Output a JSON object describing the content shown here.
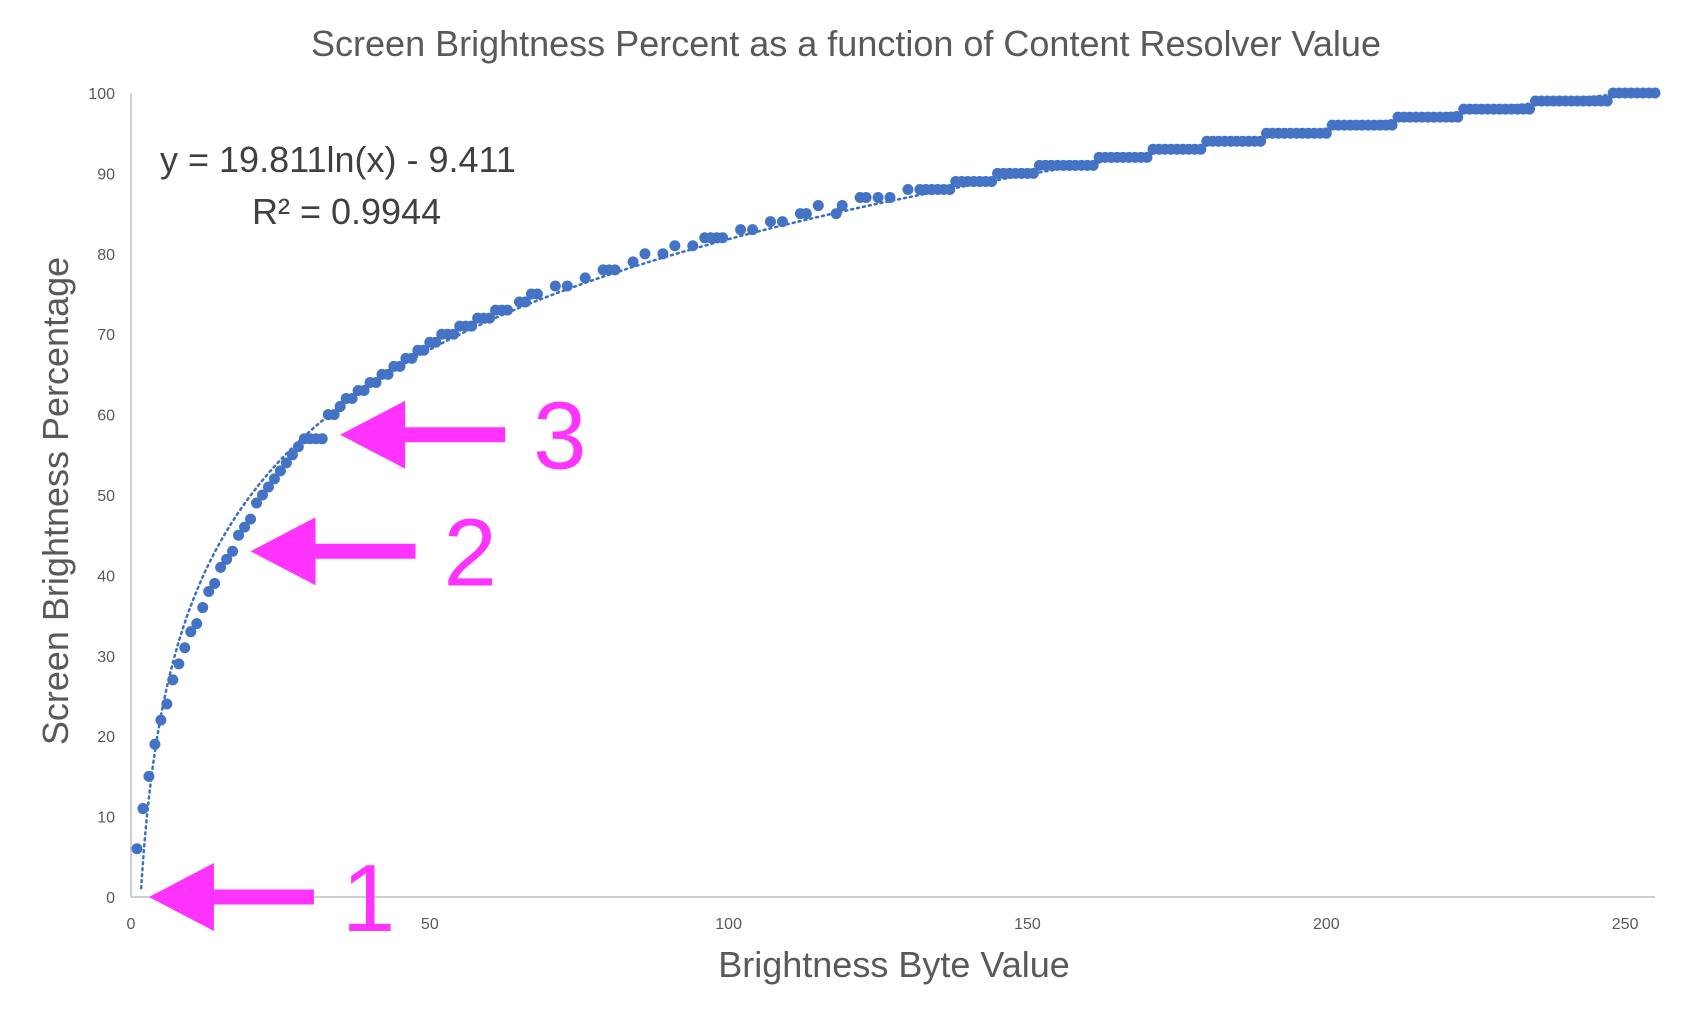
{
  "chart_data": {
    "type": "scatter",
    "title": "Screen Brightness Percent as a function of Content Resolver Value",
    "xlabel": "Brightness Byte Value",
    "ylabel": "Screen Brightness Percentage",
    "xlim": [
      0,
      255
    ],
    "ylim": [
      0,
      100
    ],
    "x_ticks": [
      0,
      50,
      100,
      150,
      200,
      250
    ],
    "y_ticks": [
      0,
      10,
      20,
      30,
      40,
      50,
      60,
      70,
      80,
      90,
      100
    ],
    "grid": false,
    "legend": "none",
    "marker_color": "#4472c4",
    "trendline": {
      "type": "logarithmic",
      "equation": "y = 19.811ln(x) - 9.411",
      "r_squared": "R² = 0.9944",
      "a": 19.811,
      "b": -9.411,
      "style": "dotted",
      "color": "#3a6fc4"
    },
    "series": [
      {
        "points": [
          [
            1,
            6
          ],
          [
            2,
            11
          ],
          [
            3,
            15
          ],
          [
            4,
            19
          ],
          [
            5,
            22
          ],
          [
            6,
            24
          ],
          [
            7,
            27
          ],
          [
            8,
            29
          ],
          [
            9,
            31
          ],
          [
            10,
            33
          ],
          [
            11,
            34
          ],
          [
            12,
            36
          ],
          [
            13,
            38
          ],
          [
            14,
            39
          ],
          [
            15,
            41
          ],
          [
            16,
            42
          ],
          [
            17,
            43
          ],
          [
            18,
            45
          ],
          [
            19,
            46
          ],
          [
            20,
            47
          ],
          [
            21,
            49
          ],
          [
            22,
            50
          ],
          [
            23,
            51
          ],
          [
            24,
            52
          ],
          [
            25,
            53
          ],
          [
            26,
            54
          ],
          [
            27,
            55
          ],
          [
            28,
            56
          ],
          [
            29,
            57
          ],
          [
            30,
            57
          ],
          [
            31,
            57
          ],
          [
            32,
            57
          ],
          [
            33,
            60
          ],
          [
            34,
            60
          ],
          [
            35,
            61
          ],
          [
            36,
            62
          ],
          [
            37,
            62
          ],
          [
            38,
            63
          ],
          [
            39,
            63
          ],
          [
            40,
            64
          ],
          [
            41,
            64
          ],
          [
            42,
            65
          ],
          [
            43,
            65
          ],
          [
            44,
            66
          ],
          [
            45,
            66
          ],
          [
            46,
            67
          ],
          [
            47,
            67
          ],
          [
            48,
            68
          ],
          [
            49,
            68
          ],
          [
            50,
            69
          ],
          [
            51,
            69
          ],
          [
            52,
            70
          ],
          [
            53,
            70
          ],
          [
            54,
            70
          ],
          [
            55,
            71
          ],
          [
            56,
            71
          ],
          [
            57,
            71
          ],
          [
            58,
            72
          ],
          [
            59,
            72
          ],
          [
            60,
            72
          ],
          [
            61,
            73
          ],
          [
            62,
            73
          ],
          [
            63,
            73
          ],
          [
            65,
            74
          ],
          [
            66,
            74
          ],
          [
            67,
            75
          ],
          [
            68,
            75
          ],
          [
            71,
            76
          ],
          [
            73,
            76
          ],
          [
            76,
            77
          ],
          [
            79,
            78
          ],
          [
            80,
            78
          ],
          [
            81,
            78
          ],
          [
            84,
            79
          ],
          [
            86,
            80
          ],
          [
            89,
            80
          ],
          [
            91,
            81
          ],
          [
            94,
            81
          ],
          [
            96,
            82
          ],
          [
            97,
            82
          ],
          [
            98,
            82
          ],
          [
            99,
            82
          ],
          [
            102,
            83
          ],
          [
            104,
            83
          ],
          [
            107,
            84
          ],
          [
            109,
            84
          ],
          [
            112,
            85
          ],
          [
            113,
            85
          ],
          [
            115,
            86
          ],
          [
            118,
            85
          ],
          [
            119,
            86
          ],
          [
            122,
            87
          ],
          [
            123,
            87
          ],
          [
            125,
            87
          ],
          [
            127,
            87
          ],
          [
            130,
            88
          ],
          [
            132,
            88
          ],
          [
            133,
            88
          ],
          [
            134,
            88
          ],
          [
            135,
            88
          ],
          [
            136,
            88
          ],
          [
            137,
            88
          ],
          [
            138,
            89
          ],
          [
            139,
            89
          ],
          [
            140,
            89
          ],
          [
            141,
            89
          ],
          [
            142,
            89
          ],
          [
            143,
            89
          ],
          [
            144,
            89
          ],
          [
            145,
            90
          ],
          [
            146,
            90
          ],
          [
            147,
            90
          ],
          [
            148,
            90
          ],
          [
            149,
            90
          ],
          [
            150,
            90
          ],
          [
            151,
            90
          ],
          [
            152,
            91
          ],
          [
            153,
            91
          ],
          [
            154,
            91
          ],
          [
            155,
            91
          ],
          [
            156,
            91
          ],
          [
            157,
            91
          ],
          [
            158,
            91
          ],
          [
            159,
            91
          ],
          [
            160,
            91
          ],
          [
            161,
            91
          ],
          [
            162,
            92
          ],
          [
            163,
            92
          ],
          [
            164,
            92
          ],
          [
            165,
            92
          ],
          [
            166,
            92
          ],
          [
            167,
            92
          ],
          [
            168,
            92
          ],
          [
            169,
            92
          ],
          [
            170,
            92
          ],
          [
            171,
            93
          ],
          [
            172,
            93
          ],
          [
            173,
            93
          ],
          [
            174,
            93
          ],
          [
            175,
            93
          ],
          [
            176,
            93
          ],
          [
            177,
            93
          ],
          [
            178,
            93
          ],
          [
            179,
            93
          ],
          [
            180,
            94
          ],
          [
            181,
            94
          ],
          [
            182,
            94
          ],
          [
            183,
            94
          ],
          [
            184,
            94
          ],
          [
            185,
            94
          ],
          [
            186,
            94
          ],
          [
            187,
            94
          ],
          [
            188,
            94
          ],
          [
            189,
            94
          ],
          [
            190,
            95
          ],
          [
            191,
            95
          ],
          [
            192,
            95
          ],
          [
            193,
            95
          ],
          [
            194,
            95
          ],
          [
            195,
            95
          ],
          [
            196,
            95
          ],
          [
            197,
            95
          ],
          [
            198,
            95
          ],
          [
            199,
            95
          ],
          [
            200,
            95
          ],
          [
            201,
            96
          ],
          [
            202,
            96
          ],
          [
            203,
            96
          ],
          [
            204,
            96
          ],
          [
            205,
            96
          ],
          [
            206,
            96
          ],
          [
            207,
            96
          ],
          [
            208,
            96
          ],
          [
            209,
            96
          ],
          [
            210,
            96
          ],
          [
            211,
            96
          ],
          [
            212,
            97
          ],
          [
            213,
            97
          ],
          [
            214,
            97
          ],
          [
            215,
            97
          ],
          [
            216,
            97
          ],
          [
            217,
            97
          ],
          [
            218,
            97
          ],
          [
            219,
            97
          ],
          [
            220,
            97
          ],
          [
            221,
            97
          ],
          [
            222,
            97
          ],
          [
            223,
            98
          ],
          [
            224,
            98
          ],
          [
            225,
            98
          ],
          [
            226,
            98
          ],
          [
            227,
            98
          ],
          [
            228,
            98
          ],
          [
            229,
            98
          ],
          [
            230,
            98
          ],
          [
            231,
            98
          ],
          [
            232,
            98
          ],
          [
            233,
            98
          ],
          [
            234,
            98
          ],
          [
            235,
            99
          ],
          [
            236,
            99
          ],
          [
            237,
            99
          ],
          [
            238,
            99
          ],
          [
            239,
            99
          ],
          [
            240,
            99
          ],
          [
            241,
            99
          ],
          [
            242,
            99
          ],
          [
            243,
            99
          ],
          [
            244,
            99
          ],
          [
            245,
            99
          ],
          [
            246,
            99
          ],
          [
            247,
            99
          ],
          [
            248,
            100
          ],
          [
            249,
            100
          ],
          [
            250,
            100
          ],
          [
            251,
            100
          ],
          [
            252,
            100
          ],
          [
            253,
            100
          ],
          [
            254,
            100
          ],
          [
            255,
            100
          ]
        ]
      }
    ],
    "annotations": [
      {
        "label": "1",
        "x": 3,
        "y": 0,
        "color": "#ff33ff",
        "shape": "left-arrow"
      },
      {
        "label": "2",
        "x": 20,
        "y": 43,
        "color": "#ff33ff",
        "shape": "left-arrow"
      },
      {
        "label": "3",
        "x": 35,
        "y": 57.5,
        "color": "#ff33ff",
        "shape": "left-arrow"
      }
    ]
  }
}
